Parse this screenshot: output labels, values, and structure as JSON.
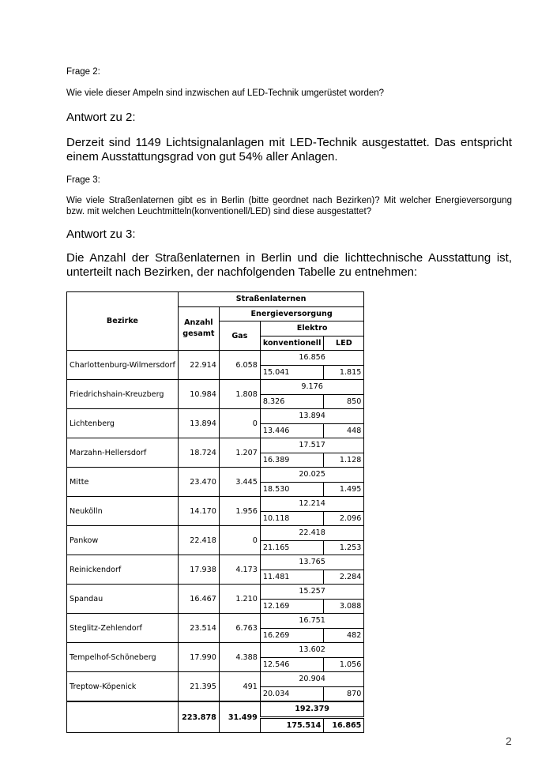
{
  "q2": {
    "label": "Frage 2:",
    "question": "Wie viele dieser Ampeln sind inzwischen auf LED-Technik umgerüstet worden?",
    "answer_label": "Antwort zu 2:",
    "answer": "Derzeit sind 1149 Lichtsignalanlagen mit LED-Technik ausgestattet. Das entspricht einem Ausstattungsgrad von gut 54% aller Anlagen."
  },
  "q3": {
    "label": "Frage 3:",
    "question": "Wie viele Straßenlaternen gibt es in Berlin (bitte geordnet nach Bezirken)? Mit welcher Energieversorgung bzw. mit welchen Leuchtmitteln(konventionell/LED) sind diese ausgestattet?",
    "answer_label": "Antwort zu 3:",
    "answer": "Die Anzahl der Straßenlaternen in Berlin und die lichttechnische Ausstattung ist, unterteilt nach Bezirken, der nachfolgenden Tabelle zu entnehmen:"
  },
  "table": {
    "headers": {
      "bezirke": "Bezirke",
      "strassenlaternen": "Straßenlaternen",
      "anzahl": "Anzahl gesamt",
      "energie": "Energieversorgung",
      "gas": "Gas",
      "elektro": "Elektro",
      "konventionell": "konventionell",
      "led": "LED"
    },
    "rows": [
      {
        "bezirk": "Charlottenburg-Wilmersdorf",
        "gesamt": "22.914",
        "gas": "6.058",
        "elektro": "16.856",
        "konv": "15.041",
        "led": "1.815"
      },
      {
        "bezirk": "Friedrichshain-Kreuzberg",
        "gesamt": "10.984",
        "gas": "1.808",
        "elektro": "9.176",
        "konv": "8.326",
        "led": "850"
      },
      {
        "bezirk": "Lichtenberg",
        "gesamt": "13.894",
        "gas": "0",
        "elektro": "13.894",
        "konv": "13.446",
        "led": "448"
      },
      {
        "bezirk": "Marzahn-Hellersdorf",
        "gesamt": "18.724",
        "gas": "1.207",
        "elektro": "17.517",
        "konv": "16.389",
        "led": "1.128"
      },
      {
        "bezirk": "Mitte",
        "gesamt": "23.470",
        "gas": "3.445",
        "elektro": "20.025",
        "konv": "18.530",
        "led": "1.495"
      },
      {
        "bezirk": "Neukölln",
        "gesamt": "14.170",
        "gas": "1.956",
        "elektro": "12.214",
        "konv": "10.118",
        "led": "2.096"
      },
      {
        "bezirk": "Pankow",
        "gesamt": "22.418",
        "gas": "0",
        "elektro": "22.418",
        "konv": "21.165",
        "led": "1.253"
      },
      {
        "bezirk": "Reinickendorf",
        "gesamt": "17.938",
        "gas": "4.173",
        "elektro": "13.765",
        "konv": "11.481",
        "led": "2.284"
      },
      {
        "bezirk": "Spandau",
        "gesamt": "16.467",
        "gas": "1.210",
        "elektro": "15.257",
        "konv": "12.169",
        "led": "3.088"
      },
      {
        "bezirk": "Steglitz-Zehlendorf",
        "gesamt": "23.514",
        "gas": "6.763",
        "elektro": "16.751",
        "konv": "16.269",
        "led": "482"
      },
      {
        "bezirk": "Tempelhof-Schöneberg",
        "gesamt": "17.990",
        "gas": "4.388",
        "elektro": "13.602",
        "konv": "12.546",
        "led": "1.056"
      },
      {
        "bezirk": "Treptow-Köpenick",
        "gesamt": "21.395",
        "gas": "491",
        "elektro": "20.904",
        "konv": "20.034",
        "led": "870"
      }
    ],
    "total": {
      "bezirk": "",
      "gesamt": "223.878",
      "gas": "31.499",
      "elektro": "192.379",
      "konv": "175.514",
      "led": "16.865"
    }
  },
  "page_number": "2"
}
